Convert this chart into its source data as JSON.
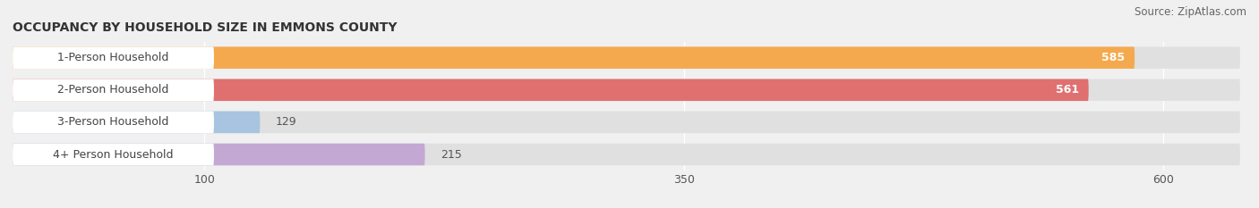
{
  "title": "OCCUPANCY BY HOUSEHOLD SIZE IN EMMONS COUNTY",
  "source": "Source: ZipAtlas.com",
  "categories": [
    "1-Person Household",
    "2-Person Household",
    "3-Person Household",
    "4+ Person Household"
  ],
  "values": [
    585,
    561,
    129,
    215
  ],
  "bar_colors": [
    "#F5A94E",
    "#E07070",
    "#A8C4E0",
    "#C4A8D4"
  ],
  "value_label_colors": [
    "white",
    "white",
    "#666666",
    "#666666"
  ],
  "xlim_data": [
    0,
    640
  ],
  "xticks": [
    100,
    350,
    600
  ],
  "title_fontsize": 10,
  "source_fontsize": 8.5,
  "label_fontsize": 9,
  "value_fontsize": 9,
  "background_color": "#f0f0f0",
  "bar_bg_color": "#e0e0e0",
  "label_box_color": "#ffffff",
  "label_text_color": "#444444"
}
